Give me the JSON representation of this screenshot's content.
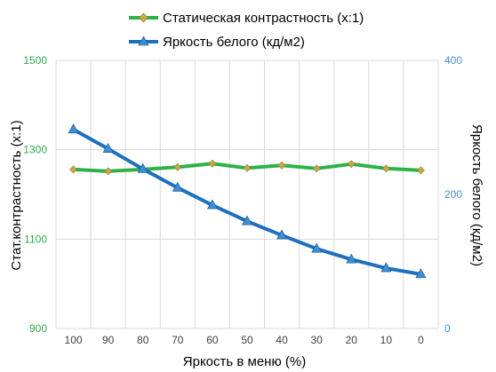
{
  "chart_data": {
    "type": "line",
    "xlabel": "Яркость в меню (%)",
    "categories": [
      "100",
      "90",
      "80",
      "70",
      "60",
      "50",
      "40",
      "30",
      "20",
      "10",
      "0"
    ],
    "y_left": {
      "label": "Стат.контрастность  (x:1)",
      "ylim": [
        900,
        1500
      ],
      "ticks": [
        "900",
        "1100",
        "1300",
        "1500"
      ],
      "tick_color": "#2eaa4a"
    },
    "y_right": {
      "label": "Яркость белого (кд/м2)",
      "ylim": [
        0,
        400
      ],
      "ticks": [
        "0",
        "200",
        "400"
      ],
      "tick_color": "#4a8fcf"
    },
    "grid": true,
    "legend_position": "top",
    "series": [
      {
        "name": "Статическая контрастность  (x:1)",
        "axis": "left",
        "line_color": "#2db24a",
        "marker": "diamond",
        "marker_color": "#c9a84a",
        "values": [
          1256,
          1252,
          1256,
          1261,
          1269,
          1259,
          1265,
          1258,
          1268,
          1258,
          1254
        ]
      },
      {
        "name": "Яркость белого (кд/м2)",
        "axis": "right",
        "line_color": "#1f6fbf",
        "marker": "triangle",
        "marker_color": "#3d8fd4",
        "values": [
          297,
          268,
          238,
          210,
          184,
          160,
          139,
          119,
          103,
          90,
          81
        ]
      }
    ]
  }
}
